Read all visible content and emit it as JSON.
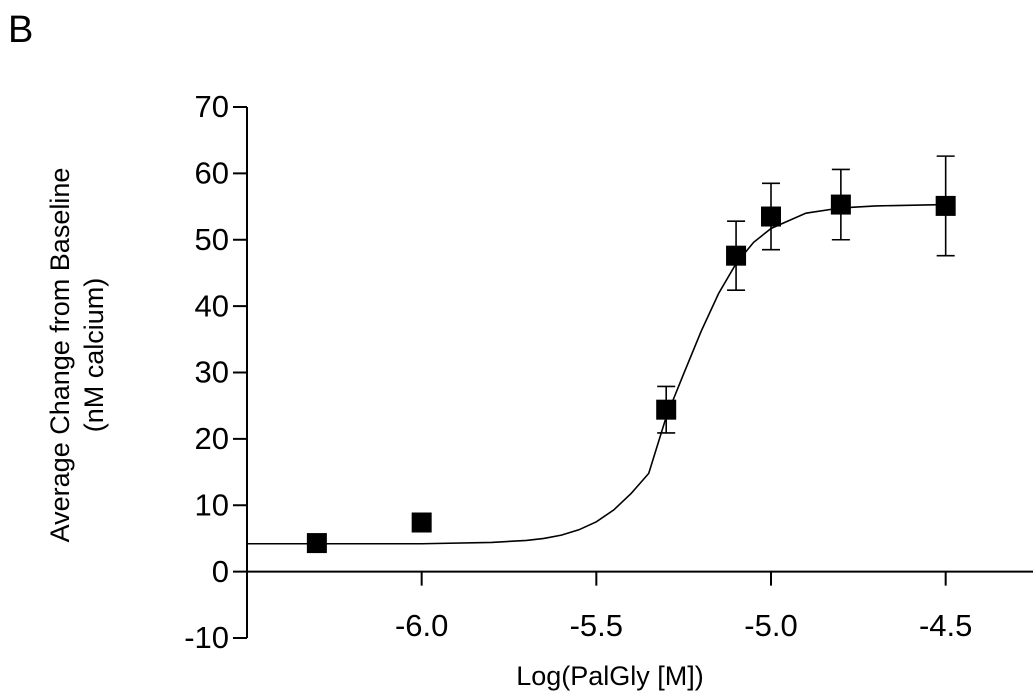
{
  "panel_label": "B",
  "chart_data": {
    "type": "scatter",
    "xlabel": "Log(PalGly [M])",
    "ylabel": [
      "Average Change from Baseline",
      "(nM calcium)"
    ],
    "xlim": [
      -6.5,
      -4.25
    ],
    "ylim": [
      -10,
      70
    ],
    "xticks": [
      {
        "value": -6,
        "label": "-6.0"
      },
      {
        "value": -5.5,
        "label": "-5.5"
      },
      {
        "value": -5,
        "label": "-5.0"
      },
      {
        "value": -4.5,
        "label": "-4.5"
      }
    ],
    "yticks": [
      -10,
      0,
      10,
      20,
      30,
      40,
      50,
      60,
      70
    ],
    "series": [
      {
        "mode": "markers",
        "color": "#000000",
        "x": [
          -6.3,
          -6.0,
          -5.3,
          -5.1,
          -5.0,
          -4.8,
          -4.5
        ],
        "values": [
          4.3,
          7.4,
          24.4,
          47.6,
          53.5,
          55.3,
          55.1
        ],
        "errors": [
          null,
          null,
          3.5,
          5.2,
          5.0,
          5.3,
          7.5
        ]
      },
      {
        "mode": "line",
        "color": "#000000",
        "x": [
          -6.5,
          -6.0,
          -5.8,
          -5.7,
          -5.65,
          -5.6,
          -5.55,
          -5.5,
          -5.45,
          -5.4,
          -5.35,
          -5.3,
          -5.25,
          -5.2,
          -5.15,
          -5.1,
          -5.05,
          -5.0,
          -4.9,
          -4.8,
          -4.7,
          -4.5
        ],
        "values": [
          4.2,
          4.2,
          4.4,
          4.7,
          5.0,
          5.5,
          6.3,
          7.5,
          9.3,
          11.8,
          14.8,
          23.3,
          29.8,
          36.2,
          41.9,
          46.4,
          49.6,
          51.7,
          54.0,
          54.8,
          55.1,
          55.3
        ]
      }
    ]
  }
}
